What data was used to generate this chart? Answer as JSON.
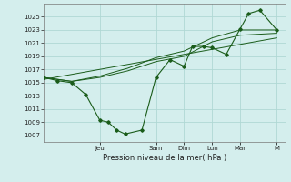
{
  "xlabel": "Pression niveau de la mer( hPa )",
  "bg_color": "#d4eeed",
  "grid_color": "#b0d8d4",
  "line_color": "#1a5c1a",
  "ylim": [
    1006,
    1027
  ],
  "yticks": [
    1007,
    1009,
    1011,
    1013,
    1015,
    1017,
    1019,
    1021,
    1023,
    1025
  ],
  "xlim": [
    0,
    8.6
  ],
  "day_labels": [
    "Jeu",
    "Sam",
    "Dim",
    "Lun",
    "Mar",
    "M"
  ],
  "day_positions": [
    2.0,
    4.0,
    5.0,
    6.0,
    7.0,
    8.3
  ],
  "series_main": {
    "x": [
      0.0,
      0.5,
      1.0,
      1.5,
      2.0,
      2.3,
      2.6,
      2.9,
      3.5,
      4.0,
      4.5,
      5.0,
      5.3,
      5.7,
      6.0,
      6.5,
      7.0,
      7.3,
      7.7,
      8.3
    ],
    "y": [
      1015.8,
      1015.3,
      1015.0,
      1013.2,
      1009.3,
      1009.0,
      1007.8,
      1007.2,
      1007.8,
      1015.8,
      1018.5,
      1017.5,
      1020.5,
      1020.5,
      1020.3,
      1019.3,
      1023.2,
      1025.5,
      1026.0,
      1023.0
    ]
  },
  "series_smooth1": {
    "x": [
      0.0,
      0.5,
      1.0,
      2.0,
      3.0,
      4.0,
      5.0,
      6.0,
      7.0,
      8.3
    ],
    "y": [
      1015.8,
      1015.5,
      1015.2,
      1015.8,
      1016.8,
      1018.2,
      1019.0,
      1021.2,
      1022.2,
      1022.5
    ]
  },
  "series_smooth2": {
    "x": [
      0.0,
      0.5,
      1.0,
      2.0,
      3.0,
      4.0,
      5.0,
      6.0,
      7.0,
      8.3
    ],
    "y": [
      1015.8,
      1015.5,
      1015.2,
      1016.0,
      1017.2,
      1018.8,
      1019.8,
      1021.8,
      1023.0,
      1023.0
    ]
  },
  "series_linear": {
    "x": [
      0.0,
      8.3
    ],
    "y": [
      1015.5,
      1021.8
    ]
  }
}
